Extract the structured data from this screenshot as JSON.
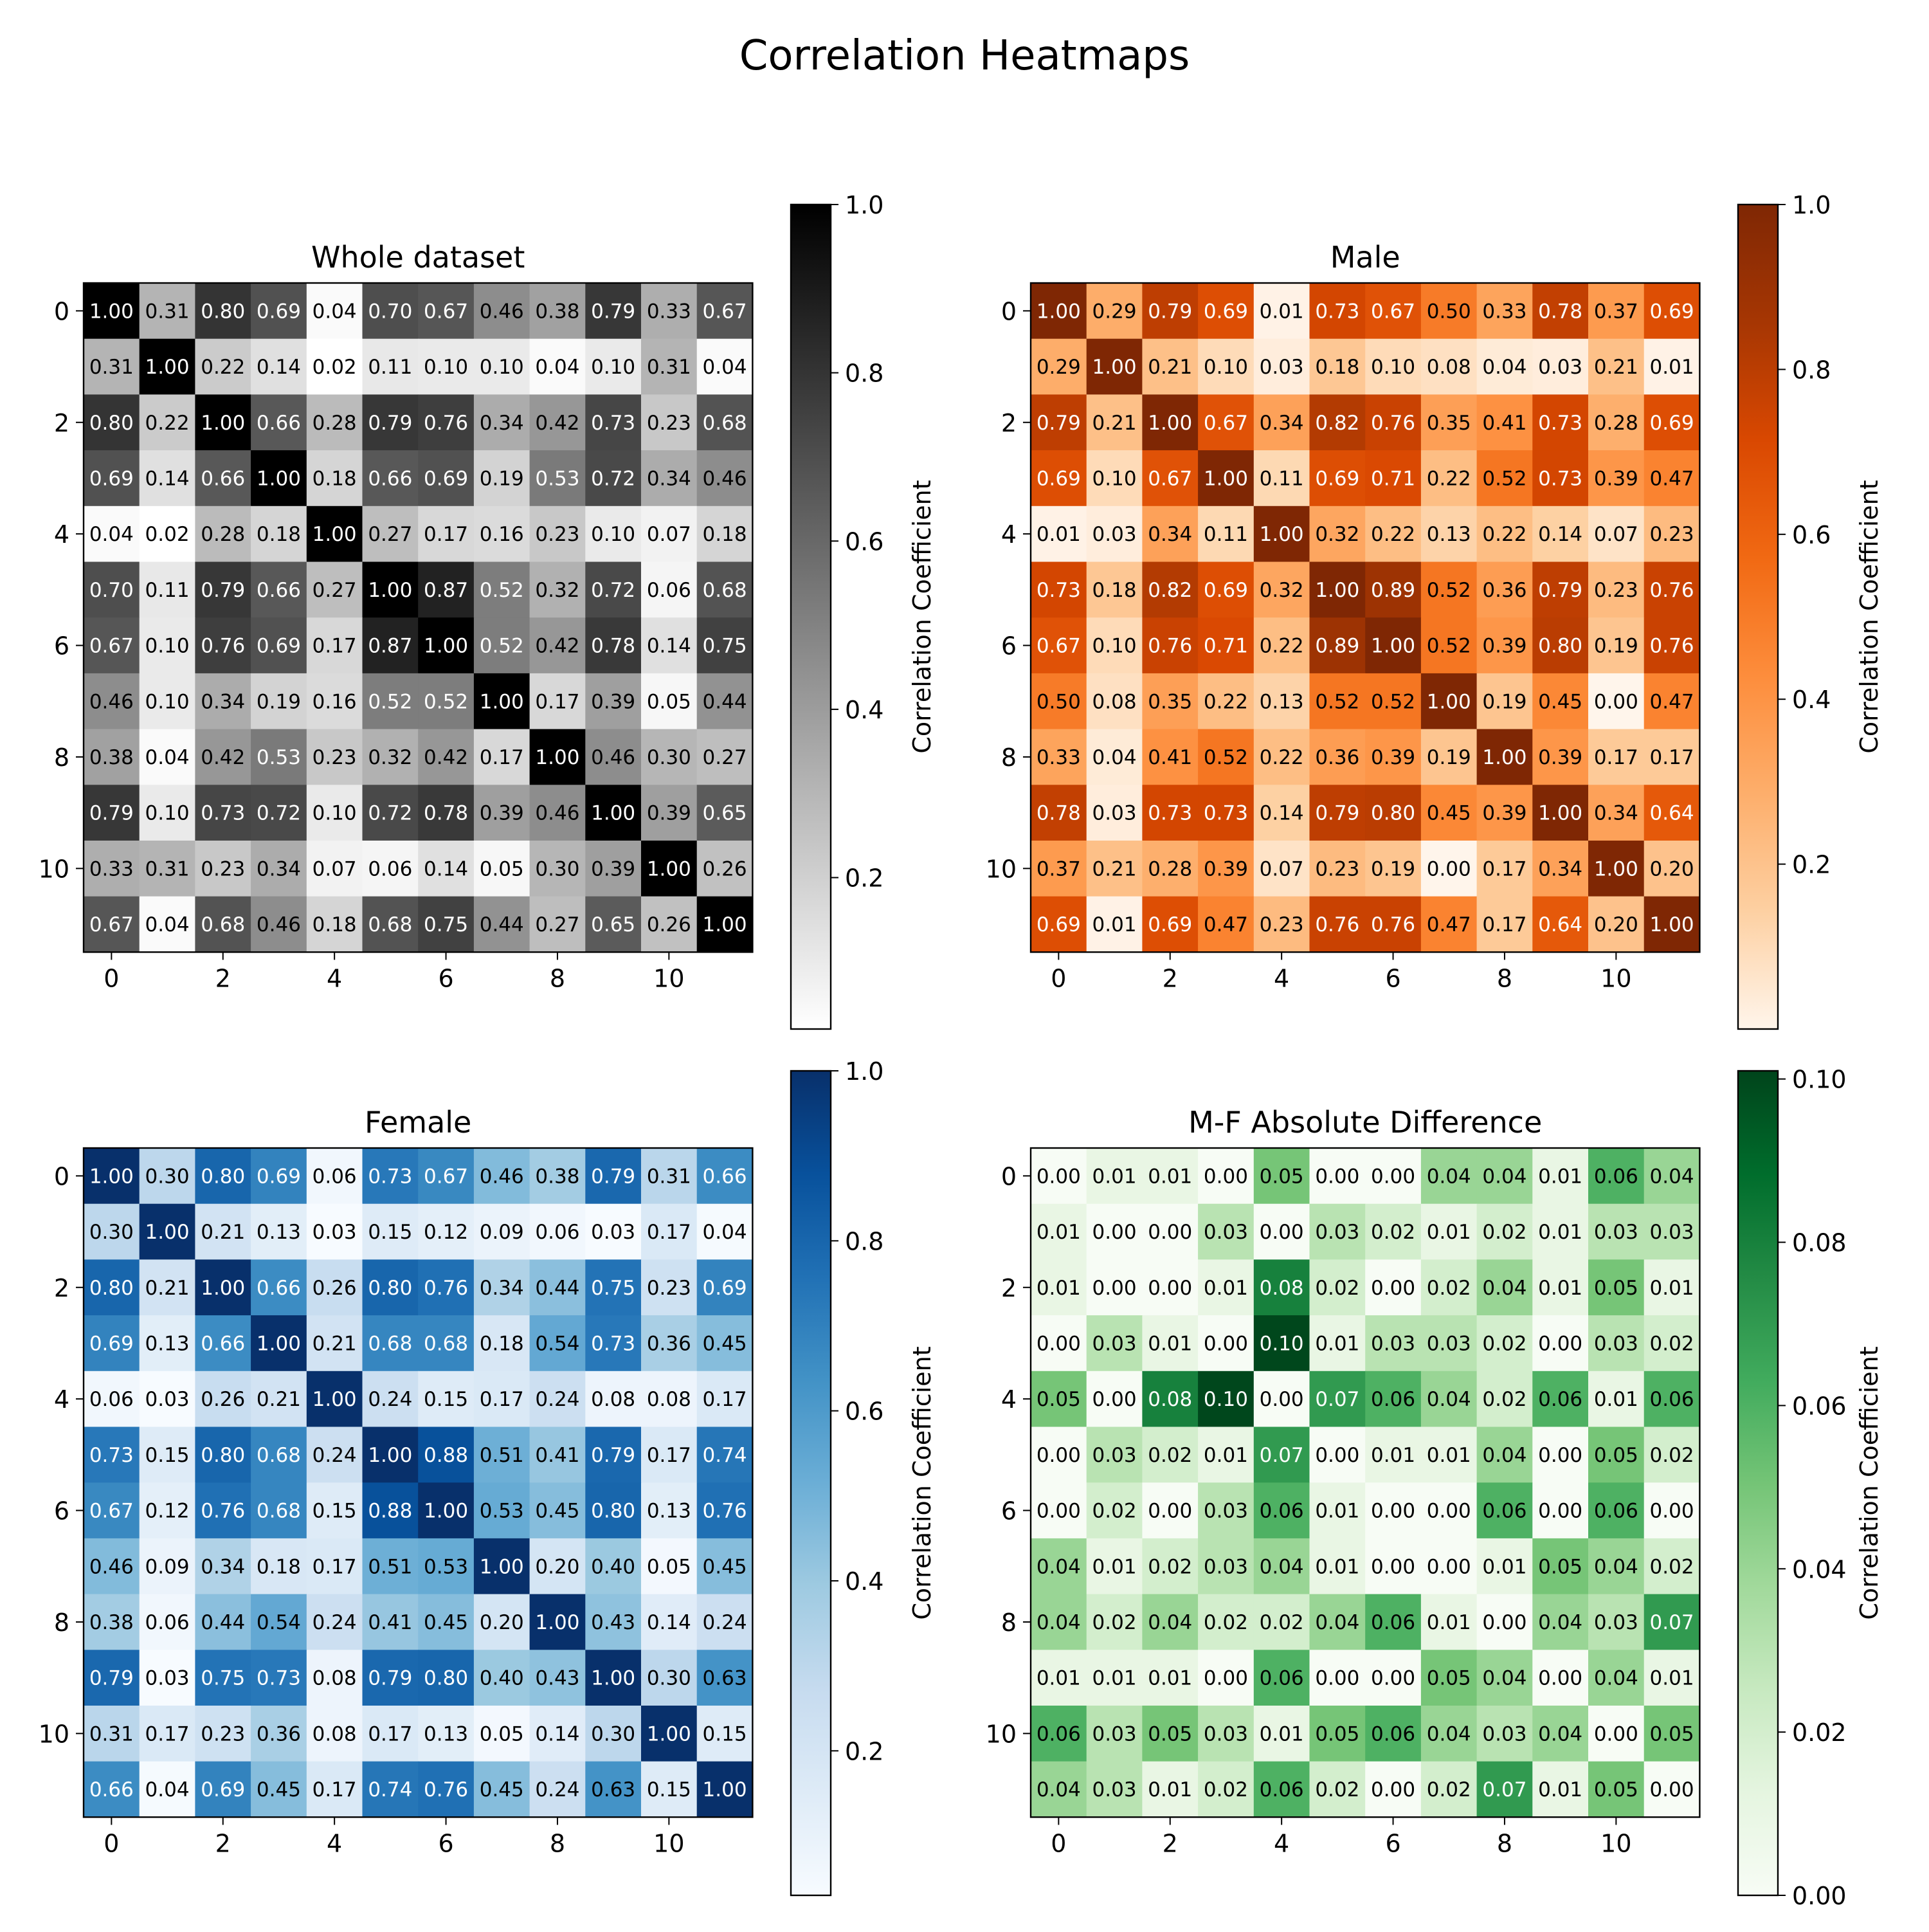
{
  "figure": {
    "title": "Correlation Heatmaps"
  },
  "chart_data": [
    {
      "type": "heatmap",
      "title": "Whole dataset",
      "colormap": "Greys",
      "colors": [
        "#ffffff",
        "#000000"
      ],
      "vmin": 0.02,
      "vmax": 1.0,
      "x_ticks": [
        0,
        2,
        4,
        6,
        8,
        10
      ],
      "y_ticks": [
        0,
        2,
        4,
        6,
        8,
        10
      ],
      "colorbar": {
        "label": "Correlation Coefficient",
        "ticks": [
          0.2,
          0.4,
          0.6,
          0.8,
          1.0
        ],
        "tick_labels": [
          "0.2",
          "0.4",
          "0.6",
          "0.8",
          "1.0"
        ]
      },
      "values": [
        [
          1.0,
          0.31,
          0.8,
          0.69,
          0.04,
          0.7,
          0.67,
          0.46,
          0.38,
          0.79,
          0.33,
          0.67
        ],
        [
          0.31,
          1.0,
          0.22,
          0.14,
          0.02,
          0.11,
          0.1,
          0.1,
          0.04,
          0.1,
          0.31,
          0.04
        ],
        [
          0.8,
          0.22,
          1.0,
          0.66,
          0.28,
          0.79,
          0.76,
          0.34,
          0.42,
          0.73,
          0.23,
          0.68
        ],
        [
          0.69,
          0.14,
          0.66,
          1.0,
          0.18,
          0.66,
          0.69,
          0.19,
          0.53,
          0.72,
          0.34,
          0.46
        ],
        [
          0.04,
          0.02,
          0.28,
          0.18,
          1.0,
          0.27,
          0.17,
          0.16,
          0.23,
          0.1,
          0.07,
          0.18
        ],
        [
          0.7,
          0.11,
          0.79,
          0.66,
          0.27,
          1.0,
          0.87,
          0.52,
          0.32,
          0.72,
          0.06,
          0.68
        ],
        [
          0.67,
          0.1,
          0.76,
          0.69,
          0.17,
          0.87,
          1.0,
          0.52,
          0.42,
          0.78,
          0.14,
          0.75
        ],
        [
          0.46,
          0.1,
          0.34,
          0.19,
          0.16,
          0.52,
          0.52,
          1.0,
          0.17,
          0.39,
          0.05,
          0.44
        ],
        [
          0.38,
          0.04,
          0.42,
          0.53,
          0.23,
          0.32,
          0.42,
          0.17,
          1.0,
          0.46,
          0.3,
          0.27
        ],
        [
          0.79,
          0.1,
          0.73,
          0.72,
          0.1,
          0.72,
          0.78,
          0.39,
          0.46,
          1.0,
          0.39,
          0.65
        ],
        [
          0.33,
          0.31,
          0.23,
          0.34,
          0.07,
          0.06,
          0.14,
          0.05,
          0.3,
          0.39,
          1.0,
          0.26
        ],
        [
          0.67,
          0.04,
          0.68,
          0.46,
          0.18,
          0.68,
          0.75,
          0.44,
          0.27,
          0.65,
          0.26,
          1.0
        ]
      ]
    },
    {
      "type": "heatmap",
      "title": "Male",
      "colormap": "Oranges",
      "colors": [
        "#fff5eb",
        "#fdd0a2",
        "#fdae6b",
        "#fd8d3c",
        "#f16913",
        "#d94801",
        "#a63603",
        "#7f2704"
      ],
      "vmin": 0.0,
      "vmax": 1.0,
      "x_ticks": [
        0,
        2,
        4,
        6,
        8,
        10
      ],
      "y_ticks": [
        0,
        2,
        4,
        6,
        8,
        10
      ],
      "colorbar": {
        "label": "Correlation Coefficient",
        "ticks": [
          0.2,
          0.4,
          0.6,
          0.8,
          1.0
        ],
        "tick_labels": [
          "0.2",
          "0.4",
          "0.6",
          "0.8",
          "1.0"
        ]
      },
      "values": [
        [
          1.0,
          0.29,
          0.79,
          0.69,
          0.01,
          0.73,
          0.67,
          0.5,
          0.33,
          0.78,
          0.37,
          0.69
        ],
        [
          0.29,
          1.0,
          0.21,
          0.1,
          0.03,
          0.18,
          0.1,
          0.08,
          0.04,
          0.03,
          0.21,
          0.01
        ],
        [
          0.79,
          0.21,
          1.0,
          0.67,
          0.34,
          0.82,
          0.76,
          0.35,
          0.41,
          0.73,
          0.28,
          0.69
        ],
        [
          0.69,
          0.1,
          0.67,
          1.0,
          0.11,
          0.69,
          0.71,
          0.22,
          0.52,
          0.73,
          0.39,
          0.47
        ],
        [
          0.01,
          0.03,
          0.34,
          0.11,
          1.0,
          0.32,
          0.22,
          0.13,
          0.22,
          0.14,
          0.07,
          0.23
        ],
        [
          0.73,
          0.18,
          0.82,
          0.69,
          0.32,
          1.0,
          0.89,
          0.52,
          0.36,
          0.79,
          0.23,
          0.76
        ],
        [
          0.67,
          0.1,
          0.76,
          0.71,
          0.22,
          0.89,
          1.0,
          0.52,
          0.39,
          0.8,
          0.19,
          0.76
        ],
        [
          0.5,
          0.08,
          0.35,
          0.22,
          0.13,
          0.52,
          0.52,
          1.0,
          0.19,
          0.45,
          0.0,
          0.47
        ],
        [
          0.33,
          0.04,
          0.41,
          0.52,
          0.22,
          0.36,
          0.39,
          0.19,
          1.0,
          0.39,
          0.17,
          0.17
        ],
        [
          0.78,
          0.03,
          0.73,
          0.73,
          0.14,
          0.79,
          0.8,
          0.45,
          0.39,
          1.0,
          0.34,
          0.64
        ],
        [
          0.37,
          0.21,
          0.28,
          0.39,
          0.07,
          0.23,
          0.19,
          0.0,
          0.17,
          0.34,
          1.0,
          0.2
        ],
        [
          0.69,
          0.01,
          0.69,
          0.47,
          0.23,
          0.76,
          0.76,
          0.47,
          0.17,
          0.64,
          0.2,
          1.0
        ]
      ]
    },
    {
      "type": "heatmap",
      "title": "Female",
      "colormap": "Blues",
      "colors": [
        "#f7fbff",
        "#deebf7",
        "#c6dbef",
        "#9ecae1",
        "#6baed6",
        "#4292c6",
        "#2171b5",
        "#08519c",
        "#08306b"
      ],
      "vmin": 0.03,
      "vmax": 1.0,
      "x_ticks": [
        0,
        2,
        4,
        6,
        8,
        10
      ],
      "y_ticks": [
        0,
        2,
        4,
        6,
        8,
        10
      ],
      "colorbar": {
        "label": "Correlation Coefficient",
        "ticks": [
          0.2,
          0.4,
          0.6,
          0.8,
          1.0
        ],
        "tick_labels": [
          "0.2",
          "0.4",
          "0.6",
          "0.8",
          "1.0"
        ]
      },
      "values": [
        [
          1.0,
          0.3,
          0.8,
          0.69,
          0.06,
          0.73,
          0.67,
          0.46,
          0.38,
          0.79,
          0.31,
          0.66
        ],
        [
          0.3,
          1.0,
          0.21,
          0.13,
          0.03,
          0.15,
          0.12,
          0.09,
          0.06,
          0.03,
          0.17,
          0.04
        ],
        [
          0.8,
          0.21,
          1.0,
          0.66,
          0.26,
          0.8,
          0.76,
          0.34,
          0.44,
          0.75,
          0.23,
          0.69
        ],
        [
          0.69,
          0.13,
          0.66,
          1.0,
          0.21,
          0.68,
          0.68,
          0.18,
          0.54,
          0.73,
          0.36,
          0.45
        ],
        [
          0.06,
          0.03,
          0.26,
          0.21,
          1.0,
          0.24,
          0.15,
          0.17,
          0.24,
          0.08,
          0.08,
          0.17
        ],
        [
          0.73,
          0.15,
          0.8,
          0.68,
          0.24,
          1.0,
          0.88,
          0.51,
          0.41,
          0.79,
          0.17,
          0.74
        ],
        [
          0.67,
          0.12,
          0.76,
          0.68,
          0.15,
          0.88,
          1.0,
          0.53,
          0.45,
          0.8,
          0.13,
          0.76
        ],
        [
          0.46,
          0.09,
          0.34,
          0.18,
          0.17,
          0.51,
          0.53,
          1.0,
          0.2,
          0.4,
          0.05,
          0.45
        ],
        [
          0.38,
          0.06,
          0.44,
          0.54,
          0.24,
          0.41,
          0.45,
          0.2,
          1.0,
          0.43,
          0.14,
          0.24
        ],
        [
          0.79,
          0.03,
          0.75,
          0.73,
          0.08,
          0.79,
          0.8,
          0.4,
          0.43,
          1.0,
          0.3,
          0.63
        ],
        [
          0.31,
          0.17,
          0.23,
          0.36,
          0.08,
          0.17,
          0.13,
          0.05,
          0.14,
          0.3,
          1.0,
          0.15
        ],
        [
          0.66,
          0.04,
          0.69,
          0.45,
          0.17,
          0.74,
          0.76,
          0.45,
          0.24,
          0.63,
          0.15,
          1.0
        ]
      ]
    },
    {
      "type": "heatmap",
      "title": "M-F Absolute Difference",
      "colormap": "Greens",
      "colors": [
        "#f7fcf5",
        "#e5f5e0",
        "#c7e9c0",
        "#a1d99b",
        "#74c476",
        "#41ab5d",
        "#238b45",
        "#006d2c",
        "#00441b"
      ],
      "vmin": 0.0,
      "vmax": 0.101,
      "x_ticks": [
        0,
        2,
        4,
        6,
        8,
        10
      ],
      "y_ticks": [
        0,
        2,
        4,
        6,
        8,
        10
      ],
      "colorbar": {
        "label": "Correlation Coefficient",
        "ticks": [
          0.0,
          0.02,
          0.04,
          0.06,
          0.08,
          0.1
        ],
        "tick_labels": [
          "0.00",
          "0.02",
          "0.04",
          "0.06",
          "0.08",
          "0.10"
        ]
      },
      "values": [
        [
          0.0,
          0.01,
          0.01,
          0.0,
          0.05,
          0.0,
          0.0,
          0.04,
          0.04,
          0.01,
          0.06,
          0.04
        ],
        [
          0.01,
          0.0,
          0.0,
          0.03,
          0.0,
          0.03,
          0.02,
          0.01,
          0.02,
          0.01,
          0.03,
          0.03
        ],
        [
          0.01,
          0.0,
          0.0,
          0.01,
          0.08,
          0.02,
          0.0,
          0.02,
          0.04,
          0.01,
          0.05,
          0.01
        ],
        [
          0.0,
          0.03,
          0.01,
          0.0,
          0.1,
          0.01,
          0.03,
          0.03,
          0.02,
          0.0,
          0.03,
          0.02
        ],
        [
          0.05,
          0.0,
          0.08,
          0.1,
          0.0,
          0.07,
          0.06,
          0.04,
          0.02,
          0.06,
          0.01,
          0.06
        ],
        [
          0.0,
          0.03,
          0.02,
          0.01,
          0.07,
          0.0,
          0.01,
          0.01,
          0.04,
          0.0,
          0.05,
          0.02
        ],
        [
          0.0,
          0.02,
          0.0,
          0.03,
          0.06,
          0.01,
          0.0,
          0.0,
          0.06,
          0.0,
          0.06,
          0.0
        ],
        [
          0.04,
          0.01,
          0.02,
          0.03,
          0.04,
          0.01,
          0.0,
          0.0,
          0.01,
          0.05,
          0.04,
          0.02
        ],
        [
          0.04,
          0.02,
          0.04,
          0.02,
          0.02,
          0.04,
          0.06,
          0.01,
          0.0,
          0.04,
          0.03,
          0.07
        ],
        [
          0.01,
          0.01,
          0.01,
          0.0,
          0.06,
          0.0,
          0.0,
          0.05,
          0.04,
          0.0,
          0.04,
          0.01
        ],
        [
          0.06,
          0.03,
          0.05,
          0.03,
          0.01,
          0.05,
          0.06,
          0.04,
          0.03,
          0.04,
          0.0,
          0.05
        ],
        [
          0.04,
          0.03,
          0.01,
          0.02,
          0.06,
          0.02,
          0.0,
          0.02,
          0.07,
          0.01,
          0.05,
          0.0
        ]
      ]
    }
  ]
}
